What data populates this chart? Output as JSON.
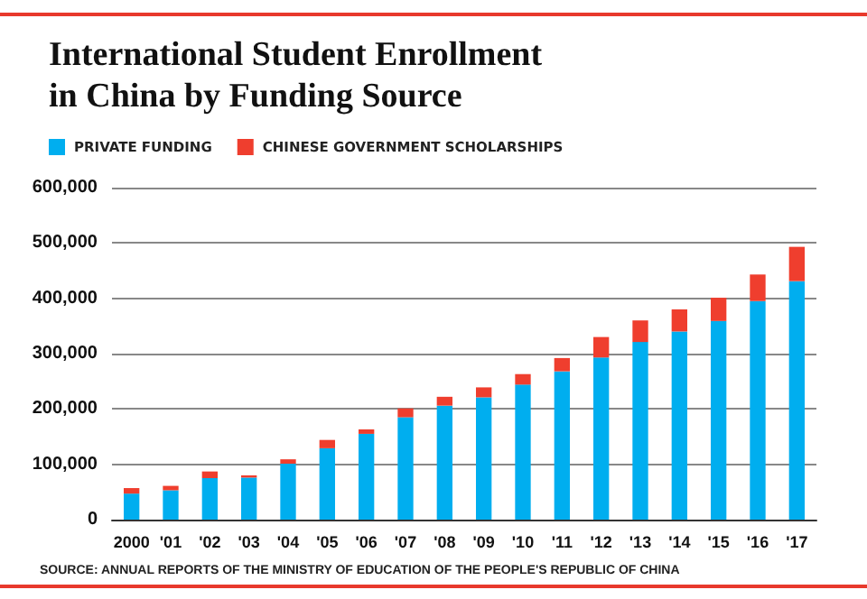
{
  "chart_data": {
    "type": "bar",
    "title": "International Student Enrollment\nin China by Funding Source",
    "categories": [
      "2000",
      "'01",
      "'02",
      "'03",
      "'04",
      "'05",
      "'06",
      "'07",
      "'08",
      "'09",
      "'10",
      "'11",
      "'12",
      "'13",
      "'14",
      "'15",
      "'16",
      "'17"
    ],
    "series": [
      {
        "name": "PRIVATE FUNDING",
        "color": "#00aeef",
        "values": [
          47000,
          53000,
          75000,
          76000,
          101000,
          129000,
          155000,
          185000,
          206000,
          221000,
          244000,
          268000,
          293000,
          321000,
          340000,
          359000,
          395000,
          431000
        ]
      },
      {
        "name": "CHINESE GOVERNMENT SCHOLARSHIPS",
        "color": "#ef3e2e",
        "values": [
          10000,
          8000,
          12000,
          4000,
          8000,
          15000,
          8000,
          16000,
          16000,
          18000,
          19000,
          24000,
          37000,
          39000,
          40000,
          42000,
          48000,
          62000
        ]
      }
    ],
    "stacked": true,
    "ylim": [
      0,
      600000
    ],
    "yticks": [
      {
        "value": 0,
        "label": "0"
      },
      {
        "value": 100000,
        "label": "100,000"
      },
      {
        "value": 200000,
        "label": "200,000"
      },
      {
        "value": 300000,
        "label": "300,000"
      },
      {
        "value": 400000,
        "label": "400,000"
      },
      {
        "value": 500000,
        "label": "500,000"
      },
      {
        "value": 600000,
        "label": "600,000"
      }
    ],
    "grid": "y",
    "legend": "top left",
    "annotations": [
      "SOURCE: ANNUAL REPORTS OF THE MINISTRY OF EDUCATION OF THE PEOPLE'S REPUBLIC OF CHINA"
    ]
  }
}
